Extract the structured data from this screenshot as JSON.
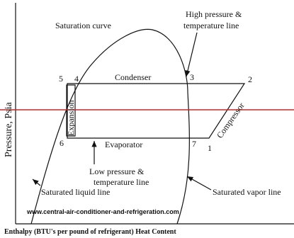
{
  "diagram": {
    "saturation_curve": "Saturation curve",
    "high_pressure": [
      "High pressure &",
      "temperature line"
    ],
    "points": [
      "1",
      "2",
      "3",
      "4",
      "5",
      "6",
      "7"
    ],
    "condenser": "Condenser",
    "evaporator": "Evaporator",
    "expansion": "Expansion",
    "compressor": "Compressor",
    "low_pressure": [
      "Low pressure &",
      "temperature line"
    ],
    "saturated_liquid": "Saturated liquid line",
    "saturated_vapor": "Saturated vapor line",
    "website": "www.central-air-conditioner-and-refrigeration.com",
    "y_axis_label": "Pressure, Psia",
    "x_axis_label": "Enthalpy (BTU's per pound of refrigerant) Heat Content"
  }
}
